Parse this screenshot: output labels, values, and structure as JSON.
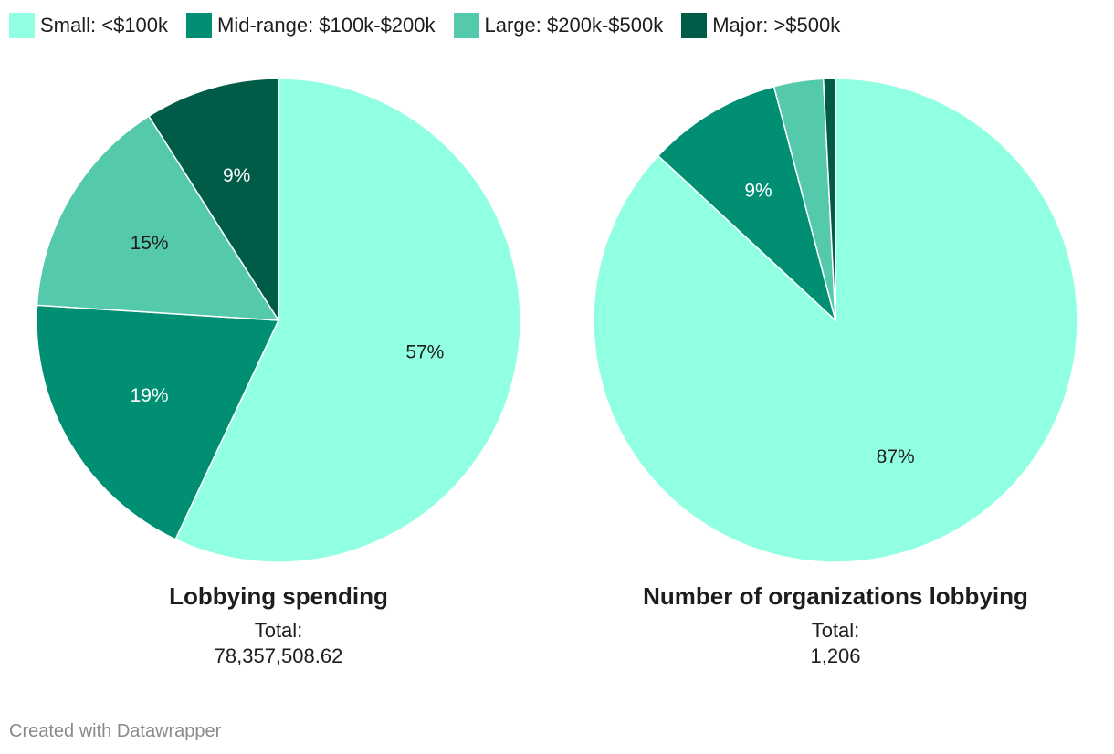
{
  "legend": {
    "items": [
      {
        "label": "Small: <$100k",
        "color": "#91ffe2"
      },
      {
        "label": "Mid-range: $100k-$200k",
        "color": "#008f72"
      },
      {
        "label": "Large: $200k-$500k",
        "color": "#55c9ab"
      },
      {
        "label": "Major: >$500k",
        "color": "#005c48"
      }
    ]
  },
  "chart_data": [
    {
      "type": "pie",
      "title": "Lobbying spending",
      "total_label": "Total:",
      "total_value": "78,357,508.62",
      "categories": [
        "Small: <$100k",
        "Mid-range: $100k-$200k",
        "Large: $200k-$500k",
        "Major: >$500k"
      ],
      "values": [
        57,
        19,
        15,
        9
      ],
      "value_labels": [
        "57%",
        "19%",
        "15%",
        "9%"
      ],
      "colors": [
        "#91ffe2",
        "#008f72",
        "#55c9ab",
        "#005c48"
      ],
      "label_colors": [
        "#1d1d1d",
        "#ffffff",
        "#1d1d1d",
        "#ffffff"
      ]
    },
    {
      "type": "pie",
      "title": "Number of organizations lobbying",
      "total_label": "Total:",
      "total_value": "1,206",
      "categories": [
        "Small: <$100k",
        "Mid-range: $100k-$200k",
        "Large: $200k-$500k",
        "Major: >$500k"
      ],
      "values": [
        87,
        9,
        3.3,
        0.8
      ],
      "value_labels": [
        "87%",
        "9%",
        "",
        ""
      ],
      "colors": [
        "#91ffe2",
        "#008f72",
        "#55c9ab",
        "#005c48"
      ],
      "label_colors": [
        "#1d1d1d",
        "#ffffff",
        "#1d1d1d",
        "#ffffff"
      ]
    }
  ],
  "footer": {
    "credit": "Created with Datawrapper"
  }
}
